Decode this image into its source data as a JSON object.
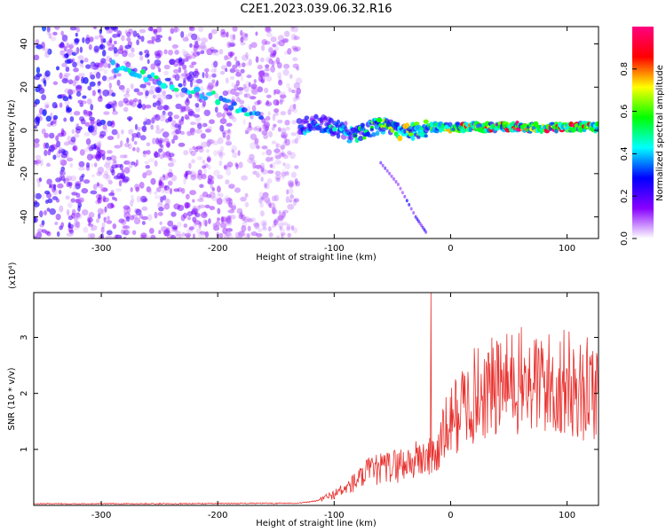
{
  "title": "C2E1.2023.039.06.32.R16",
  "chart_data": [
    {
      "type": "heatmap",
      "xlabel": "Height of straight line (km)",
      "ylabel": "Frequency (Hz)",
      "xlim": [
        -358,
        127
      ],
      "ylim": [
        -50,
        48
      ],
      "x_ticks": [
        -300,
        -200,
        -100,
        0,
        100
      ],
      "x_tick_labels": [
        "-300",
        "-200",
        "-100",
        "0",
        "100"
      ],
      "y_ticks": [
        -40,
        -20,
        0,
        20,
        40
      ],
      "y_tick_labels": [
        "-40",
        "-20",
        "0",
        "20",
        "40"
      ],
      "colorbar": {
        "label": "Normalized spectral amplitude",
        "range": [
          0,
          1
        ],
        "ticks": [
          0,
          0.2,
          0.4,
          0.6,
          0.8
        ],
        "tick_labels": [
          "0.0",
          "0.2",
          "0.4",
          "0.6",
          "0.8"
        ],
        "colors": [
          "#ffffff",
          "#8800ff",
          "#0000ff",
          "#00ffff",
          "#00ff00",
          "#ffff00",
          "#ff0000",
          "#ff0080"
        ]
      },
      "features": [
        {
          "name": "broadband noise region",
          "x_range": [
            -358,
            -130
          ],
          "freq_range": [
            -50,
            48
          ],
          "amplitude": 0.2
        },
        {
          "name": "dispersive drift",
          "x": [
            -290,
            -250,
            -200,
            -160
          ],
          "freq": [
            30,
            23,
            15,
            5
          ],
          "amplitude": 0.4
        },
        {
          "name": "signal band",
          "x_range": [
            -130,
            127
          ],
          "freq": 1.5,
          "amplitude_start": 0.35,
          "amplitude_end": 0.9
        },
        {
          "name": "descending trace",
          "x": [
            -60,
            -45,
            -30,
            -20
          ],
          "freq": [
            -15,
            -25,
            -40,
            -48
          ],
          "amplitude": 0.25
        }
      ]
    },
    {
      "type": "line",
      "xlabel": "Height of straight line (km)",
      "ylabel": "SNR (10 * v/v)",
      "y_scale_label": "(x10⁴)",
      "xlim": [
        -358,
        127
      ],
      "ylim": [
        0,
        3.8
      ],
      "x_ticks": [
        -300,
        -200,
        -100,
        0,
        100
      ],
      "x_tick_labels": [
        "-300",
        "-200",
        "-100",
        "0",
        "100"
      ],
      "y_ticks": [
        1,
        2,
        3
      ],
      "y_tick_labels": [
        "1",
        "2",
        "3"
      ],
      "color": "#e8312e",
      "series": [
        {
          "x": [
            -358,
            -250,
            -130,
            -115,
            -100,
            -90,
            -80,
            -70,
            -60,
            -50,
            -40,
            -30,
            -25,
            -20,
            -17,
            -12,
            -5,
            0,
            10,
            20,
            30,
            40,
            50,
            60,
            70,
            80,
            90,
            100,
            110,
            120,
            127
          ],
          "y": [
            0.03,
            0.03,
            0.04,
            0.08,
            0.2,
            0.3,
            0.45,
            0.6,
            0.65,
            0.7,
            0.75,
            0.8,
            0.85,
            0.85,
            3.8,
            0.9,
            1.3,
            1.5,
            1.75,
            1.95,
            2.05,
            2.1,
            2.15,
            2.2,
            2.15,
            2.2,
            2.1,
            2.2,
            2.0,
            2.1,
            2.05
          ]
        }
      ]
    }
  ]
}
